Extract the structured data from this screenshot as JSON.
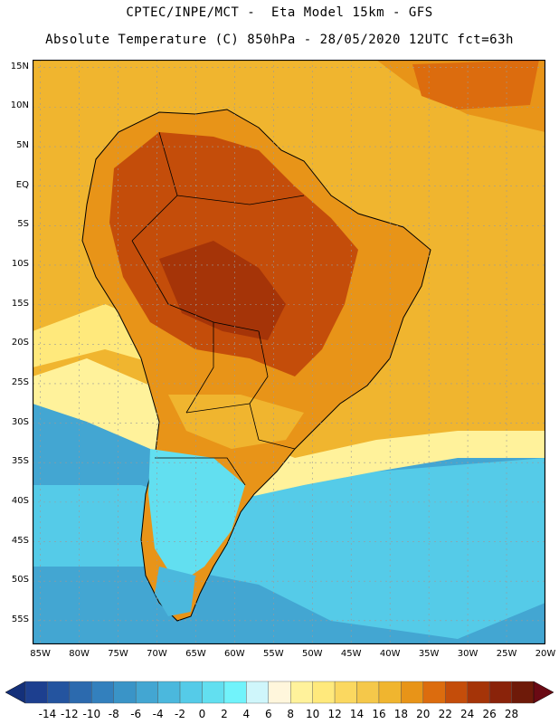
{
  "header": {
    "line1": "CPTEC/INPE/MCT -  Eta Model 15km - GFS",
    "line2": "Absolute Temperature (C) 850hPa - 28/05/2020 12UTC fct=63h"
  },
  "map": {
    "latitude_labels": [
      "15N",
      "10N",
      "5N",
      "EQ",
      "5S",
      "10S",
      "15S",
      "20S",
      "25S",
      "30S",
      "35S",
      "40S",
      "45S",
      "50S",
      "55S"
    ],
    "longitude_labels": [
      "85W",
      "80W",
      "75W",
      "70W",
      "65W",
      "60W",
      "55W",
      "50W",
      "45W",
      "40W",
      "35W",
      "30W",
      "25W",
      "20W"
    ],
    "extent": {
      "lon_min": -86,
      "lon_max": -20,
      "lat_min": -58,
      "lat_max": 16
    }
  },
  "colorbar": {
    "labels": [
      "-14",
      "-12",
      "-10",
      "-8",
      "-6",
      "-4",
      "-2",
      "0",
      "2",
      "4",
      "6",
      "8",
      "10",
      "12",
      "14",
      "16",
      "18",
      "20",
      "22",
      "24",
      "26",
      "28"
    ],
    "colors": [
      "#1d3f8f",
      "#24549f",
      "#2c6aae",
      "#3380bd",
      "#3a94c7",
      "#43a6d2",
      "#4bb8dd",
      "#55cbe8",
      "#62dff0",
      "#71f3fb",
      "#cff6fb",
      "#fff6dc",
      "#fff29b",
      "#ffe97c",
      "#fbd860",
      "#f5c84a",
      "#f0b52f",
      "#e89418",
      "#dc6c0e",
      "#c44d0a",
      "#a53408",
      "#8a230a",
      "#6e1a09"
    ],
    "under_color": "#14307a",
    "over_color": "#6a0a14"
  }
}
